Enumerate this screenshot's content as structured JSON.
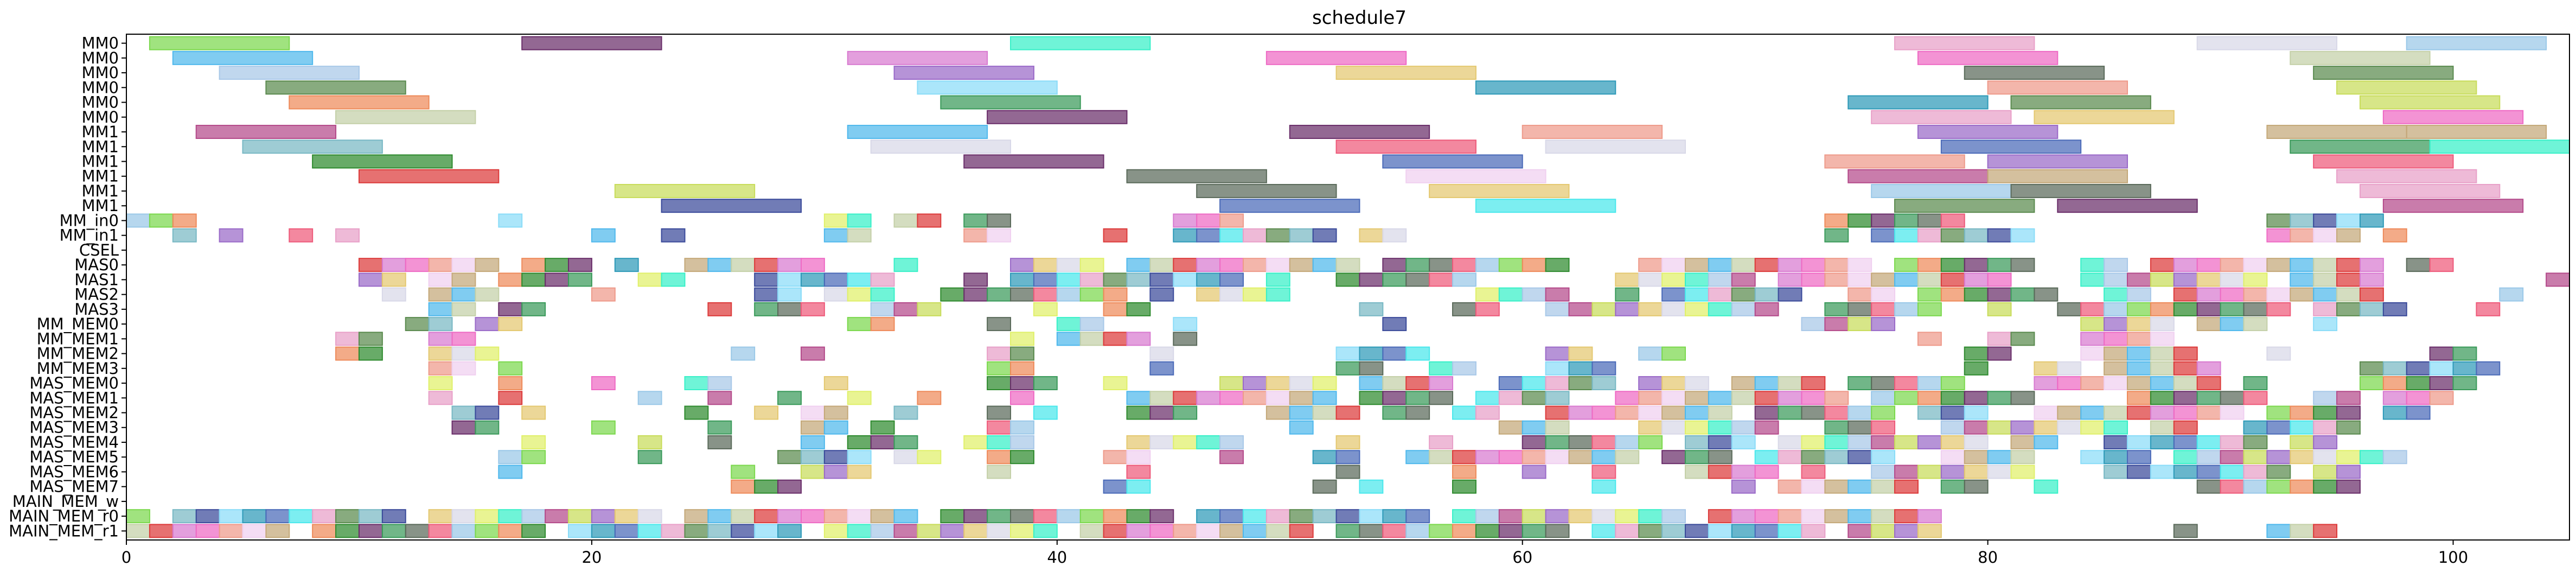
{
  "chart_data": {
    "type": "gantt",
    "title": "schedule7",
    "xlabel": "",
    "ylabel": "",
    "xlim": [
      0,
      105
    ],
    "x_ticks": [
      0,
      20,
      40,
      60,
      80,
      100
    ],
    "grid": false,
    "legend": "none",
    "rows": [
      "MM0",
      "MM0",
      "MM0",
      "MM0",
      "MM0",
      "MM0",
      "MM1",
      "MM1",
      "MM1",
      "MM1",
      "MM1",
      "MM1",
      "MM_in0",
      "MM_in1",
      "CSEL",
      "MAS0",
      "MAS1",
      "MAS2",
      "MAS3",
      "MM_MEM0",
      "MM_MEM1",
      "MM_MEM2",
      "MM_MEM3",
      "MAS_MEM0",
      "MAS_MEM1",
      "MAS_MEM2",
      "MAS_MEM3",
      "MAS_MEM4",
      "MAS_MEM5",
      "MAS_MEM6",
      "MAS_MEM7",
      "MAIN_MEM_w",
      "MAIN_MEM_r0",
      "MAIN_MEM_r1"
    ],
    "palette": [
      "#7bd84d",
      "#4fb8ec",
      "#a8c8e8",
      "#5a8a4e",
      "#ee8a5a",
      "#c4d0a8",
      "#b44a8a",
      "#78b8c4",
      "#2e8a2e",
      "#dc3a3a",
      "#c8dc5a",
      "#3a4a9a",
      "#6a2e6a",
      "#d87ad0",
      "#9a6ac8",
      "#8adcf8",
      "#3a9a5a",
      "#ee6ac4",
      "#e4c870",
      "#2e9ab8",
      "#5a6a5a",
      "#ee9a8a",
      "#d8d8e8",
      "#4a6ab8",
      "#ee5a7a",
      "#f0d0f0",
      "#e0f06a",
      "#4ae8ec",
      "#9ac8e8",
      "#c4a878",
      "#38f0c8",
      "#e8a0c8"
    ],
    "tasks": [
      {
        "row": 0,
        "start": 1,
        "end": 7,
        "c": 0
      },
      {
        "row": 0,
        "start": 17,
        "end": 23,
        "c": 12
      },
      {
        "row": 0,
        "start": 38,
        "end": 44,
        "c": 30
      },
      {
        "row": 0,
        "start": 76,
        "end": 82,
        "c": 31
      },
      {
        "row": 0,
        "start": 89,
        "end": 95,
        "c": 22
      },
      {
        "row": 0,
        "start": 98,
        "end": 104,
        "c": 28
      },
      {
        "row": 1,
        "start": 2,
        "end": 8,
        "c": 1
      },
      {
        "row": 1,
        "start": 31,
        "end": 37,
        "c": 13
      },
      {
        "row": 1,
        "start": 49,
        "end": 55,
        "c": 17
      },
      {
        "row": 1,
        "start": 77,
        "end": 83,
        "c": 17
      },
      {
        "row": 1,
        "start": 93,
        "end": 99,
        "c": 5
      },
      {
        "row": 2,
        "start": 4,
        "end": 10,
        "c": 2
      },
      {
        "row": 2,
        "start": 33,
        "end": 39,
        "c": 14
      },
      {
        "row": 2,
        "start": 52,
        "end": 58,
        "c": 18
      },
      {
        "row": 2,
        "start": 79,
        "end": 85,
        "c": 20
      },
      {
        "row": 2,
        "start": 94,
        "end": 100,
        "c": 3
      },
      {
        "row": 3,
        "start": 6,
        "end": 12,
        "c": 3
      },
      {
        "row": 3,
        "start": 34,
        "end": 40,
        "c": 15
      },
      {
        "row": 3,
        "start": 58,
        "end": 64,
        "c": 19
      },
      {
        "row": 3,
        "start": 80,
        "end": 86,
        "c": 21
      },
      {
        "row": 3,
        "start": 95,
        "end": 101,
        "c": 10
      },
      {
        "row": 4,
        "start": 7,
        "end": 13,
        "c": 4
      },
      {
        "row": 4,
        "start": 35,
        "end": 41,
        "c": 16
      },
      {
        "row": 4,
        "start": 74,
        "end": 80,
        "c": 19
      },
      {
        "row": 4,
        "start": 81,
        "end": 87,
        "c": 3
      },
      {
        "row": 4,
        "start": 96,
        "end": 102,
        "c": 10
      },
      {
        "row": 5,
        "start": 9,
        "end": 15,
        "c": 5
      },
      {
        "row": 5,
        "start": 37,
        "end": 43,
        "c": 12
      },
      {
        "row": 5,
        "start": 75,
        "end": 81,
        "c": 31
      },
      {
        "row": 5,
        "start": 82,
        "end": 88,
        "c": 18
      },
      {
        "row": 5,
        "start": 97,
        "end": 103,
        "c": 17
      },
      {
        "row": 6,
        "start": 3,
        "end": 9,
        "c": 6
      },
      {
        "row": 6,
        "start": 31,
        "end": 37,
        "c": 1
      },
      {
        "row": 6,
        "start": 50,
        "end": 56,
        "c": 12
      },
      {
        "row": 6,
        "start": 60,
        "end": 66,
        "c": 21
      },
      {
        "row": 6,
        "start": 77,
        "end": 83,
        "c": 14
      },
      {
        "row": 6,
        "start": 92,
        "end": 98,
        "c": 29
      },
      {
        "row": 6,
        "start": 98,
        "end": 104,
        "c": 29
      },
      {
        "row": 7,
        "start": 5,
        "end": 11,
        "c": 7
      },
      {
        "row": 7,
        "start": 32,
        "end": 38,
        "c": 22
      },
      {
        "row": 7,
        "start": 52,
        "end": 58,
        "c": 24
      },
      {
        "row": 7,
        "start": 61,
        "end": 67,
        "c": 22
      },
      {
        "row": 7,
        "start": 78,
        "end": 84,
        "c": 23
      },
      {
        "row": 7,
        "start": 93,
        "end": 99,
        "c": 16
      },
      {
        "row": 7,
        "start": 99,
        "end": 105,
        "c": 30
      },
      {
        "row": 8,
        "start": 8,
        "end": 14,
        "c": 8
      },
      {
        "row": 8,
        "start": 36,
        "end": 42,
        "c": 12
      },
      {
        "row": 8,
        "start": 54,
        "end": 60,
        "c": 23
      },
      {
        "row": 8,
        "start": 73,
        "end": 79,
        "c": 21
      },
      {
        "row": 8,
        "start": 80,
        "end": 86,
        "c": 14
      },
      {
        "row": 8,
        "start": 94,
        "end": 100,
        "c": 24
      },
      {
        "row": 9,
        "start": 10,
        "end": 16,
        "c": 9
      },
      {
        "row": 9,
        "start": 43,
        "end": 49,
        "c": 20
      },
      {
        "row": 9,
        "start": 55,
        "end": 61,
        "c": 25
      },
      {
        "row": 9,
        "start": 74,
        "end": 80,
        "c": 6
      },
      {
        "row": 9,
        "start": 80,
        "end": 86,
        "c": 29
      },
      {
        "row": 9,
        "start": 95,
        "end": 101,
        "c": 31
      },
      {
        "row": 10,
        "start": 21,
        "end": 27,
        "c": 10
      },
      {
        "row": 10,
        "start": 46,
        "end": 52,
        "c": 20
      },
      {
        "row": 10,
        "start": 56,
        "end": 62,
        "c": 18
      },
      {
        "row": 10,
        "start": 75,
        "end": 81,
        "c": 28
      },
      {
        "row": 10,
        "start": 81,
        "end": 87,
        "c": 20
      },
      {
        "row": 10,
        "start": 96,
        "end": 102,
        "c": 31
      },
      {
        "row": 11,
        "start": 23,
        "end": 29,
        "c": 11
      },
      {
        "row": 11,
        "start": 47,
        "end": 53,
        "c": 23
      },
      {
        "row": 11,
        "start": 58,
        "end": 64,
        "c": 27
      },
      {
        "row": 11,
        "start": 76,
        "end": 82,
        "c": 3
      },
      {
        "row": 11,
        "start": 83,
        "end": 89,
        "c": 12
      },
      {
        "row": 11,
        "start": 97,
        "end": 103,
        "c": 6
      }
    ]
  }
}
